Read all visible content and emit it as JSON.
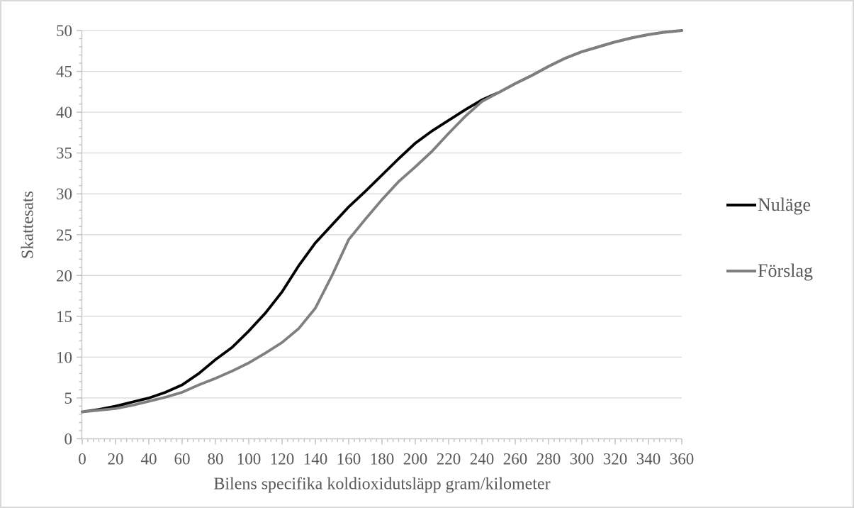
{
  "chart_data": {
    "type": "line",
    "title": "",
    "xlabel": "Bilens specifika koldioxidutsläpp gram/kilometer",
    "ylabel": "Skattesats",
    "xlim": [
      0,
      360
    ],
    "ylim": [
      0,
      50
    ],
    "x_tick_labels": [
      "0",
      "20",
      "40",
      "60",
      "80",
      "100",
      "120",
      "140",
      "160",
      "180",
      "200",
      "220",
      "240",
      "260",
      "280",
      "300",
      "320",
      "340",
      "360"
    ],
    "y_tick_labels": [
      "0",
      "5",
      "10",
      "15",
      "20",
      "25",
      "30",
      "35",
      "40",
      "45",
      "50"
    ],
    "x_minor_tick_step": 3.3333,
    "y_minor_tick_step": 1,
    "grid": "horizontal-major",
    "legend_position": "right",
    "x": [
      0,
      10,
      20,
      30,
      40,
      50,
      60,
      70,
      80,
      90,
      100,
      110,
      120,
      130,
      140,
      150,
      160,
      170,
      180,
      190,
      200,
      210,
      220,
      230,
      240,
      250,
      260,
      270,
      280,
      290,
      300,
      310,
      320,
      330,
      340,
      350,
      360
    ],
    "series": [
      {
        "name": "Nuläge",
        "color": "#000000",
        "values": [
          3.3,
          3.6,
          4.0,
          4.5,
          5.0,
          5.7,
          6.6,
          8.0,
          9.7,
          11.2,
          13.2,
          15.4,
          18.0,
          21.2,
          24.0,
          26.2,
          28.4,
          30.3,
          32.3,
          34.3,
          36.2,
          37.7,
          39.0,
          40.3,
          41.5,
          42.4,
          43.5,
          44.5,
          45.6,
          46.6,
          47.4,
          48.0,
          48.6,
          49.1,
          49.5,
          49.8,
          50.0
        ]
      },
      {
        "name": "Förslag",
        "color": "#7f7f7f",
        "values": [
          3.3,
          3.5,
          3.7,
          4.1,
          4.6,
          5.1,
          5.7,
          6.6,
          7.4,
          8.3,
          9.3,
          10.5,
          11.8,
          13.5,
          16.0,
          20.0,
          24.4,
          26.9,
          29.3,
          31.5,
          33.3,
          35.2,
          37.4,
          39.5,
          41.3,
          42.4,
          43.5,
          44.5,
          45.6,
          46.6,
          47.4,
          48.0,
          48.6,
          49.1,
          49.5,
          49.8,
          50.0
        ]
      }
    ]
  },
  "colors": {
    "axis_line": "#bfbfbf",
    "gridline": "#d9d9d9",
    "tick_mark": "#bfbfbf",
    "text": "#595959",
    "background": "#ffffff",
    "border": "#d9d9d9"
  }
}
